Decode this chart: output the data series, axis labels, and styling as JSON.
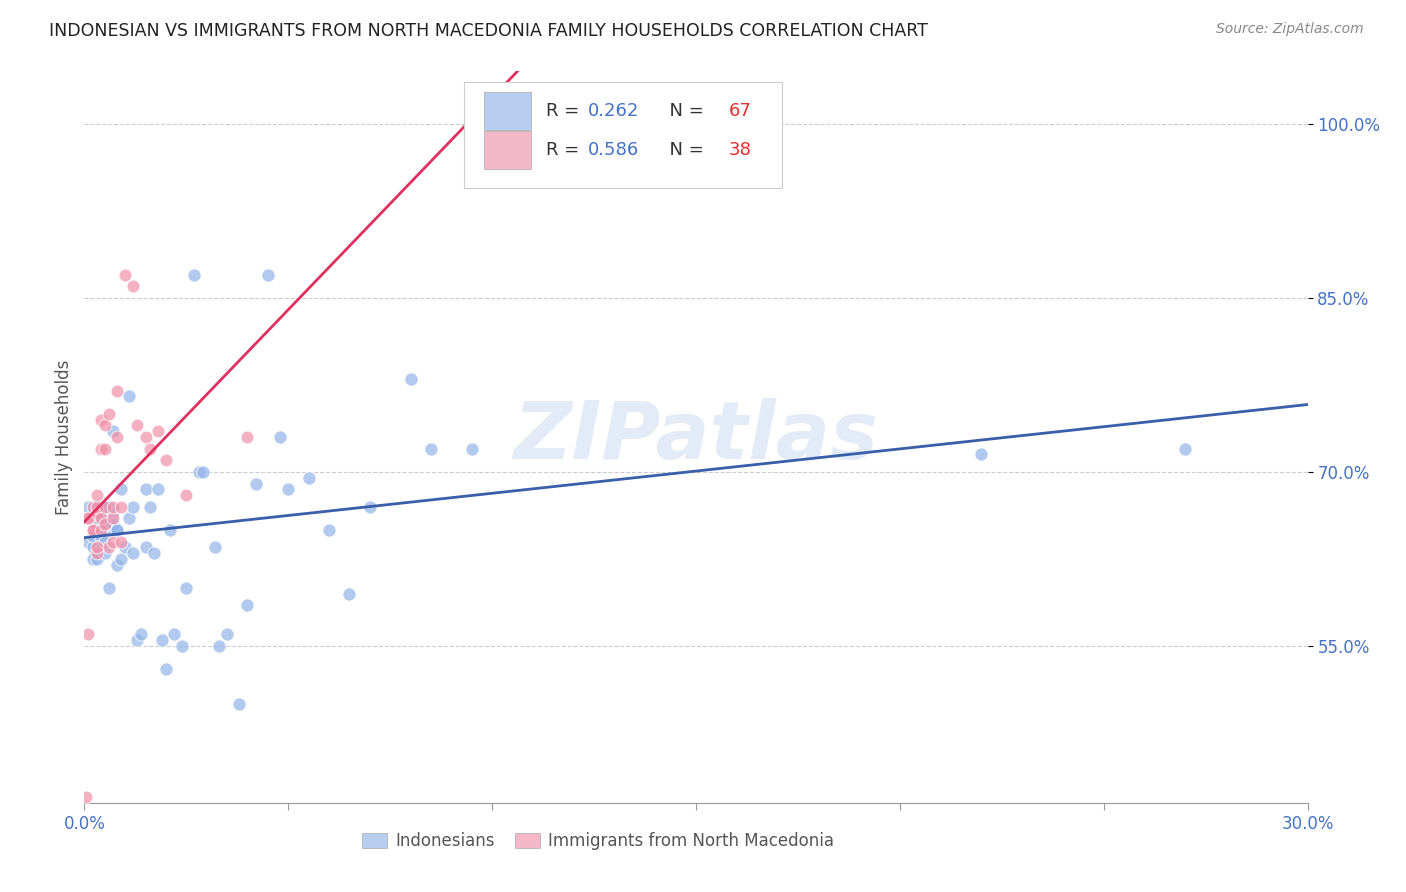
{
  "title": "INDONESIAN VS IMMIGRANTS FROM NORTH MACEDONIA FAMILY HOUSEHOLDS CORRELATION CHART",
  "source": "Source: ZipAtlas.com",
  "ylabel": "Family Households",
  "legend_1_color": "#b8cef0",
  "legend_2_color": "#f4b8c8",
  "scatter_blue_color": "#92b4e8",
  "scatter_pink_color": "#f090a8",
  "trend_blue_color": "#3a5faa",
  "trend_pink_color": "#e03060",
  "watermark": "ZIPatlas",
  "background_color": "#ffffff",
  "legend_label_1": "Indonesians",
  "legend_label_2": "Immigrants from North Macedonia",
  "blue_x": [
    0.001,
    0.001,
    0.002,
    0.002,
    0.002,
    0.003,
    0.003,
    0.003,
    0.003,
    0.004,
    0.004,
    0.004,
    0.005,
    0.005,
    0.005,
    0.005,
    0.006,
    0.006,
    0.006,
    0.006,
    0.007,
    0.007,
    0.007,
    0.008,
    0.008,
    0.008,
    0.009,
    0.009,
    0.01,
    0.011,
    0.011,
    0.012,
    0.012,
    0.013,
    0.014,
    0.015,
    0.015,
    0.016,
    0.017,
    0.018,
    0.019,
    0.02,
    0.021,
    0.022,
    0.024,
    0.025,
    0.027,
    0.028,
    0.029,
    0.032,
    0.033,
    0.035,
    0.038,
    0.04,
    0.042,
    0.045,
    0.048,
    0.05,
    0.055,
    0.06,
    0.065,
    0.07,
    0.08,
    0.085,
    0.095,
    0.22,
    0.27
  ],
  "blue_y": [
    0.64,
    0.67,
    0.635,
    0.645,
    0.625,
    0.655,
    0.67,
    0.66,
    0.625,
    0.665,
    0.645,
    0.67,
    0.63,
    0.64,
    0.655,
    0.67,
    0.67,
    0.65,
    0.655,
    0.6,
    0.665,
    0.735,
    0.655,
    0.62,
    0.65,
    0.65,
    0.685,
    0.625,
    0.635,
    0.66,
    0.765,
    0.63,
    0.67,
    0.555,
    0.56,
    0.685,
    0.635,
    0.67,
    0.63,
    0.685,
    0.555,
    0.53,
    0.65,
    0.56,
    0.55,
    0.6,
    0.87,
    0.7,
    0.7,
    0.635,
    0.55,
    0.56,
    0.5,
    0.585,
    0.69,
    0.87,
    0.73,
    0.685,
    0.695,
    0.65,
    0.595,
    0.67,
    0.78,
    0.72,
    0.72,
    0.715,
    0.72
  ],
  "pink_x": [
    0.0005,
    0.001,
    0.001,
    0.001,
    0.002,
    0.002,
    0.002,
    0.003,
    0.003,
    0.003,
    0.003,
    0.003,
    0.004,
    0.004,
    0.004,
    0.004,
    0.005,
    0.005,
    0.005,
    0.005,
    0.006,
    0.006,
    0.007,
    0.007,
    0.007,
    0.008,
    0.008,
    0.009,
    0.009,
    0.01,
    0.012,
    0.013,
    0.015,
    0.016,
    0.018,
    0.02,
    0.025,
    0.04
  ],
  "pink_y": [
    0.42,
    0.56,
    0.66,
    0.66,
    0.65,
    0.65,
    0.67,
    0.63,
    0.635,
    0.665,
    0.67,
    0.68,
    0.65,
    0.66,
    0.72,
    0.745,
    0.655,
    0.67,
    0.72,
    0.74,
    0.635,
    0.75,
    0.64,
    0.66,
    0.67,
    0.77,
    0.73,
    0.64,
    0.67,
    0.87,
    0.86,
    0.74,
    0.73,
    0.72,
    0.735,
    0.71,
    0.68,
    0.73
  ],
  "x_min": 0.0,
  "x_max": 0.3,
  "y_min": 0.415,
  "y_max": 1.045,
  "ytick_vals": [
    0.55,
    0.7,
    0.85,
    1.0
  ],
  "ytick_labels": [
    "55.0%",
    "70.0%",
    "85.0%",
    "100.0%"
  ],
  "xtick_vals": [
    0.0,
    0.05,
    0.1,
    0.15,
    0.2,
    0.25,
    0.3
  ],
  "xtick_labels": [
    "0.0%",
    "",
    "",
    "",
    "",
    "",
    "30.0%"
  ]
}
